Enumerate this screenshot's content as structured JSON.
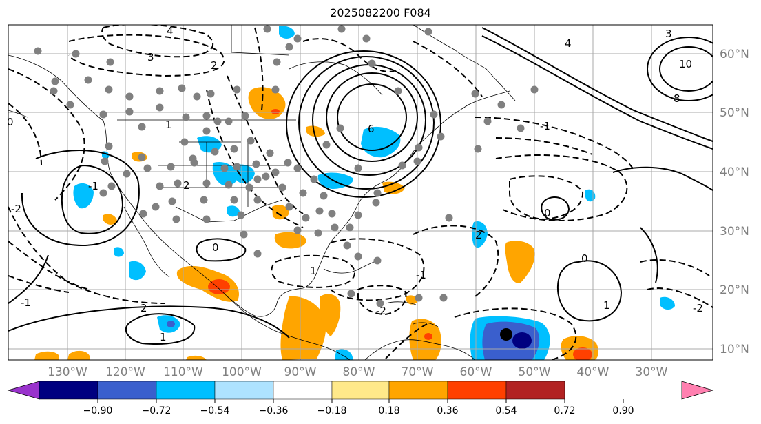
{
  "title": "2025082200 F084",
  "map": {
    "lon_labels": [
      "130°W",
      "120°W",
      "110°W",
      "100°W",
      "90°W",
      "80°W",
      "70°W",
      "60°W",
      "50°W",
      "40°W",
      "30°W"
    ],
    "lat_labels": [
      "60°N",
      "50°N",
      "40°N",
      "30°N",
      "20°N",
      "10°N"
    ],
    "contour_labels": [
      "4",
      "3",
      "2",
      "1",
      "0",
      "-1",
      "-2",
      "6",
      "8",
      "10",
      "3",
      "4",
      "2",
      "0",
      "-2",
      "1",
      "-1",
      "2",
      "1",
      "0",
      "-1",
      "-2",
      "1",
      "2",
      "0",
      "-1"
    ],
    "colors": {
      "positive": [
        "#ffe98a",
        "#ffa500",
        "#ff4000",
        "#b22222",
        "#ff80b0"
      ],
      "negative": [
        "#aee3ff",
        "#00bfff",
        "#3a5fcd",
        "#000080",
        "#9933cc"
      ],
      "grid": "#a9a9a9",
      "coast": "#000000"
    }
  },
  "colorbar": {
    "ticks": [
      "−0.90",
      "−0.72",
      "−0.54",
      "−0.36",
      "−0.18",
      "0.18",
      "0.36",
      "0.54",
      "0.72",
      "0.90"
    ],
    "segments": [
      "#9933cc",
      "#000080",
      "#3a5fcd",
      "#00bfff",
      "#aee3ff",
      "#ffffff",
      "#ffe98a",
      "#ffa500",
      "#ff4000",
      "#b22222",
      "#ff80b0"
    ]
  }
}
